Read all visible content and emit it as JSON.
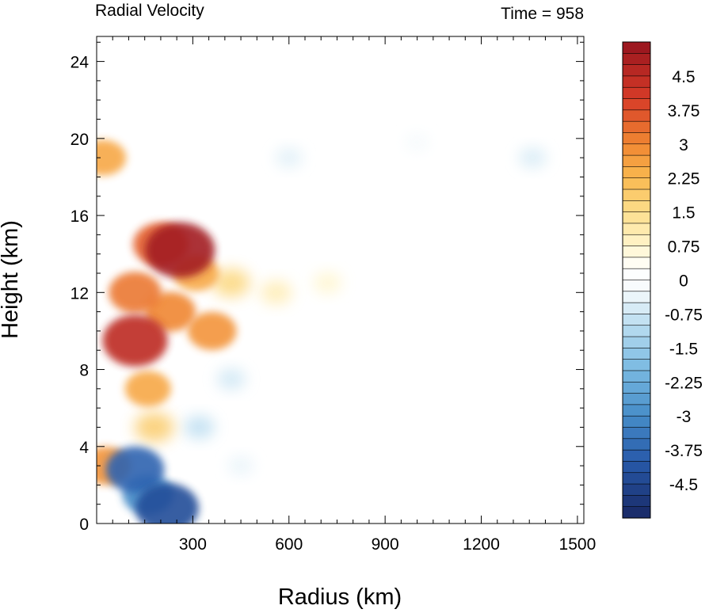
{
  "chart_data": {
    "type": "heatmap",
    "title": "Radial Velocity",
    "subtitle": "Time = 958",
    "xlabel": "Radius (km)",
    "ylabel": "Height (km)",
    "xlim": [
      0,
      1520
    ],
    "ylim": [
      0,
      25.3
    ],
    "x_ticks": [
      300,
      600,
      900,
      1200,
      1500
    ],
    "y_ticks": [
      0,
      4,
      8,
      12,
      16,
      20,
      24
    ],
    "x_tick_labels": [
      "300",
      "600",
      "900",
      "1200",
      "1500"
    ],
    "y_tick_labels": [
      "0",
      "4",
      "8",
      "12",
      "16",
      "20",
      "24"
    ],
    "colorbar": {
      "min": -5.25,
      "max": 5.25,
      "step": 0.25,
      "labels": [
        "4.5",
        "3.75",
        "3",
        "2.25",
        "1.5",
        "0.75",
        "0",
        "-0.75",
        "-1.5",
        "-2.25",
        "-3",
        "-3.75",
        "-4.5"
      ],
      "label_values": [
        4.5,
        3.75,
        3,
        2.25,
        1.5,
        0.75,
        0,
        -0.75,
        -1.5,
        -2.25,
        -3,
        -3.75,
        -4.5
      ],
      "colormap": "blue-white-red"
    },
    "features": [
      {
        "r": 260,
        "z": 14.2,
        "value": 5.0
      },
      {
        "r": 200,
        "z": 14.5,
        "value": 3.5
      },
      {
        "r": 310,
        "z": 13.0,
        "value": 2.5
      },
      {
        "r": 230,
        "z": 11.0,
        "value": 3.0
      },
      {
        "r": 120,
        "z": 9.5,
        "value": 4.5
      },
      {
        "r": 120,
        "z": 12.0,
        "value": 3.2
      },
      {
        "r": 160,
        "z": 7.0,
        "value": 2.5
      },
      {
        "r": 360,
        "z": 10.0,
        "value": 2.8
      },
      {
        "r": 420,
        "z": 12.5,
        "value": 1.6
      },
      {
        "r": 560,
        "z": 12.0,
        "value": 1.0
      },
      {
        "r": 720,
        "z": 12.5,
        "value": 0.7
      },
      {
        "r": 180,
        "z": 5.0,
        "value": 1.8
      },
      {
        "r": 120,
        "z": 2.8,
        "value": -3.8
      },
      {
        "r": 220,
        "z": 0.8,
        "value": -4.3
      },
      {
        "r": 160,
        "z": 1.5,
        "value": -3.0
      },
      {
        "r": 30,
        "z": 3.0,
        "value": 2.8
      },
      {
        "r": 20,
        "z": 19.0,
        "value": 2.5
      },
      {
        "r": 320,
        "z": 5.0,
        "value": -0.9
      },
      {
        "r": 420,
        "z": 7.5,
        "value": -0.7
      },
      {
        "r": 600,
        "z": 19.0,
        "value": -0.5
      },
      {
        "r": 1000,
        "z": 19.8,
        "value": -0.25
      },
      {
        "r": 1360,
        "z": 19.0,
        "value": -0.6
      },
      {
        "r": 450,
        "z": 3.0,
        "value": -0.4
      }
    ]
  }
}
